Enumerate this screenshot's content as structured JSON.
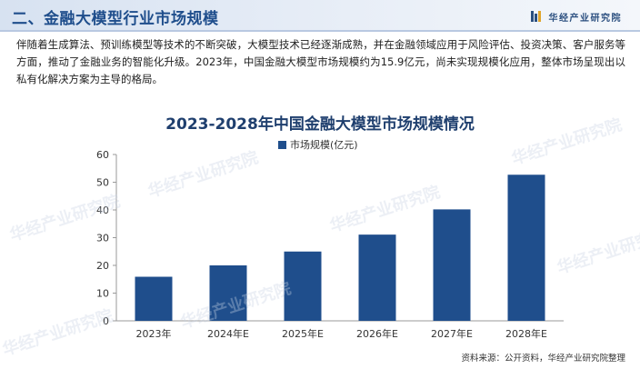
{
  "header": {
    "title": "二、金融大模型行业市场规模",
    "brand": "华经产业研究院"
  },
  "intro": "伴随着生成算法、预训练模型等技术的不断突破，大模型技术已经逐渐成熟，并在金融领域应用于风险评估、投资决策、客户服务等方面，推动了金融业务的智能化升级。2023年，中国金融大模型市场规模约为15.9亿元，尚未实现规模化应用，整体市场呈现出以私有化解决方案为主导的格局。",
  "watermark": "华经产业研究院",
  "source": "资料来源：公开资料，华经产业研究院整理",
  "colors": {
    "bar": "#1f4e8c",
    "title": "#1f3f6e",
    "header_text": "#1f4e8c"
  },
  "chart_data": {
    "type": "bar",
    "title": "2023-2028年中国金融大模型市场规模情况",
    "categories": [
      "2023年",
      "2024年E",
      "2025年E",
      "2026年E",
      "2027年E",
      "2028年E"
    ],
    "series": [
      {
        "name": "市场规模(亿元)",
        "values": [
          15.9,
          20.0,
          25.0,
          31.1,
          40.2,
          52.7
        ]
      }
    ],
    "ylim": [
      0,
      60
    ],
    "yticks": [
      0,
      10,
      20,
      30,
      40,
      50,
      60
    ],
    "legend": "top-center",
    "grid": false
  }
}
